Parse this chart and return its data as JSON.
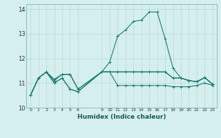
{
  "xlabel": "Humidex (Indice chaleur)",
  "bg_color": "#d4efee",
  "grid_color": "#b8d8d6",
  "line_color": "#1a7a6e",
  "xlim": [
    -0.5,
    23.5
  ],
  "ylim": [
    10.0,
    14.2
  ],
  "yticks": [
    10,
    11,
    12,
    13,
    14
  ],
  "xtick_positions": [
    0,
    1,
    2,
    3,
    4,
    5,
    6,
    9,
    10,
    11,
    12,
    13,
    14,
    15,
    16,
    17,
    18,
    19,
    20,
    21,
    22,
    23
  ],
  "xtick_labels": [
    "0",
    "1",
    "2",
    "3",
    "4",
    "5",
    "6",
    "9",
    "10",
    "11",
    "12",
    "13",
    "14",
    "15",
    "16",
    "17",
    "18",
    "19",
    "20",
    "21",
    "22",
    "23"
  ],
  "series1_x": [
    0,
    1,
    2,
    3,
    4,
    5,
    6,
    9,
    10,
    11,
    12,
    13,
    14,
    15,
    16,
    17,
    18,
    19,
    20,
    21,
    22,
    23
  ],
  "series1_y": [
    10.5,
    11.2,
    11.45,
    11.1,
    11.35,
    11.35,
    10.75,
    11.45,
    11.85,
    12.9,
    13.15,
    13.5,
    13.55,
    13.88,
    13.88,
    12.8,
    11.6,
    11.2,
    11.1,
    11.05,
    11.22,
    10.95
  ],
  "series2_x": [
    0,
    1,
    2,
    3,
    4,
    5,
    6,
    9,
    10,
    11,
    12,
    13,
    14,
    15,
    16,
    17,
    18,
    19,
    20,
    21,
    22,
    23
  ],
  "series2_y": [
    10.5,
    11.2,
    11.45,
    11.15,
    11.35,
    11.35,
    10.75,
    11.45,
    11.45,
    11.45,
    11.45,
    11.45,
    11.45,
    11.45,
    11.45,
    11.45,
    11.2,
    11.2,
    11.1,
    11.05,
    11.22,
    10.95
  ],
  "series3_x": [
    0,
    1,
    2,
    3,
    4,
    5,
    6,
    9,
    10,
    11,
    12,
    13,
    14,
    15,
    16,
    17,
    18,
    19,
    20,
    21,
    22,
    23
  ],
  "series3_y": [
    10.5,
    11.2,
    11.45,
    11.0,
    11.2,
    10.75,
    10.65,
    11.45,
    11.45,
    11.45,
    11.45,
    11.45,
    11.45,
    11.45,
    11.45,
    11.45,
    11.2,
    11.2,
    11.1,
    11.05,
    11.22,
    10.95
  ],
  "series4_x": [
    0,
    1,
    2,
    3,
    4,
    5,
    6,
    9,
    10,
    11,
    12,
    13,
    14,
    15,
    16,
    17,
    18,
    19,
    20,
    21,
    22,
    23
  ],
  "series4_y": [
    10.5,
    11.2,
    11.45,
    11.0,
    11.2,
    10.75,
    10.65,
    11.45,
    11.45,
    10.9,
    10.9,
    10.9,
    10.9,
    10.9,
    10.9,
    10.9,
    10.85,
    10.85,
    10.85,
    10.9,
    11.0,
    10.9
  ]
}
